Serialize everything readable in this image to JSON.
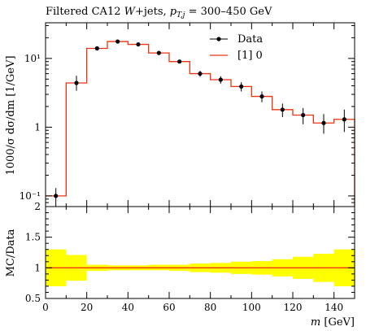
{
  "title": "Filtered CA12 W+jets, p_T,j = 300–450 GeV",
  "title_parts": {
    "main": "Filtered CA12 ",
    "w": "W",
    "jets": "+jets, ",
    "pt": "p",
    "pt_sub": "T,j",
    "range": " = 300–450 GeV"
  },
  "chart_data": [
    {
      "panel": "main",
      "type": "line",
      "ylabel": "1000/σ dσ/dm [1/GeV]",
      "xlim": [
        0,
        150
      ],
      "ylim": [
        0.07,
        33
      ],
      "yscale": "log",
      "yticks": [
        0.1,
        1,
        10
      ],
      "ytick_labels": [
        "10⁻¹",
        "1",
        "10¹"
      ],
      "legend_position": "top-right",
      "bin_edges": [
        0,
        10,
        20,
        30,
        40,
        50,
        60,
        70,
        80,
        90,
        100,
        110,
        120,
        130,
        140,
        150
      ],
      "series": [
        {
          "name": "Data",
          "style": "points",
          "color": "#000000",
          "x": [
            5,
            15,
            25,
            35,
            45,
            55,
            65,
            75,
            85,
            95,
            105,
            115,
            125,
            135,
            145
          ],
          "y": [
            0.1,
            4.4,
            14.0,
            17.6,
            16.0,
            12.0,
            9.0,
            6.0,
            4.9,
            3.9,
            2.8,
            1.8,
            1.5,
            1.15,
            1.3
          ],
          "yerr_low": [
            0.03,
            1.0,
            0.6,
            0.5,
            0.6,
            0.5,
            0.4,
            0.6,
            0.6,
            0.6,
            0.5,
            0.4,
            0.4,
            0.35,
            0.45
          ],
          "yerr_high": [
            0.03,
            1.2,
            0.7,
            0.6,
            0.6,
            0.5,
            0.4,
            0.6,
            0.6,
            0.6,
            0.5,
            0.4,
            0.4,
            0.4,
            0.5
          ]
        },
        {
          "name": "[1] 0",
          "style": "step",
          "color": "#ee3311",
          "values": [
            0.1,
            4.4,
            14.0,
            17.6,
            16.0,
            12.0,
            9.0,
            6.0,
            4.9,
            3.9,
            2.8,
            1.8,
            1.5,
            1.15,
            1.3
          ]
        }
      ]
    },
    {
      "panel": "ratio",
      "type": "area",
      "ylabel": "MC/Data",
      "xlabel": "m [GeV]",
      "xlim": [
        0,
        150
      ],
      "ylim": [
        0.5,
        2
      ],
      "yticks": [
        0.5,
        1,
        1.5,
        2
      ],
      "ytick_labels": [
        "0.5",
        "1",
        "1.5",
        "2"
      ],
      "xticks": [
        0,
        20,
        40,
        60,
        80,
        100,
        120,
        140
      ],
      "xtick_labels": [
        "0",
        "20",
        "40",
        "60",
        "80",
        "100",
        "120",
        "140"
      ],
      "bin_edges": [
        0,
        10,
        20,
        30,
        40,
        50,
        60,
        70,
        80,
        90,
        100,
        110,
        120,
        130,
        140,
        150
      ],
      "band_low": [
        0.7,
        0.79,
        0.95,
        0.96,
        0.96,
        0.96,
        0.95,
        0.93,
        0.92,
        0.9,
        0.89,
        0.86,
        0.82,
        0.77,
        0.7
      ],
      "band_high": [
        1.3,
        1.21,
        1.05,
        1.04,
        1.04,
        1.05,
        1.05,
        1.07,
        1.08,
        1.1,
        1.11,
        1.14,
        1.18,
        1.23,
        1.3
      ],
      "ratio_line": 1.0,
      "band_color": "#ffff00",
      "line_color": "#ee3311"
    }
  ],
  "labels": {
    "ylabel_main": "1000/σ dσ/dm [1/GeV]",
    "ylabel_ratio": "MC/Data",
    "xlabel_var": "m",
    "xlabel_unit": " [GeV]"
  }
}
